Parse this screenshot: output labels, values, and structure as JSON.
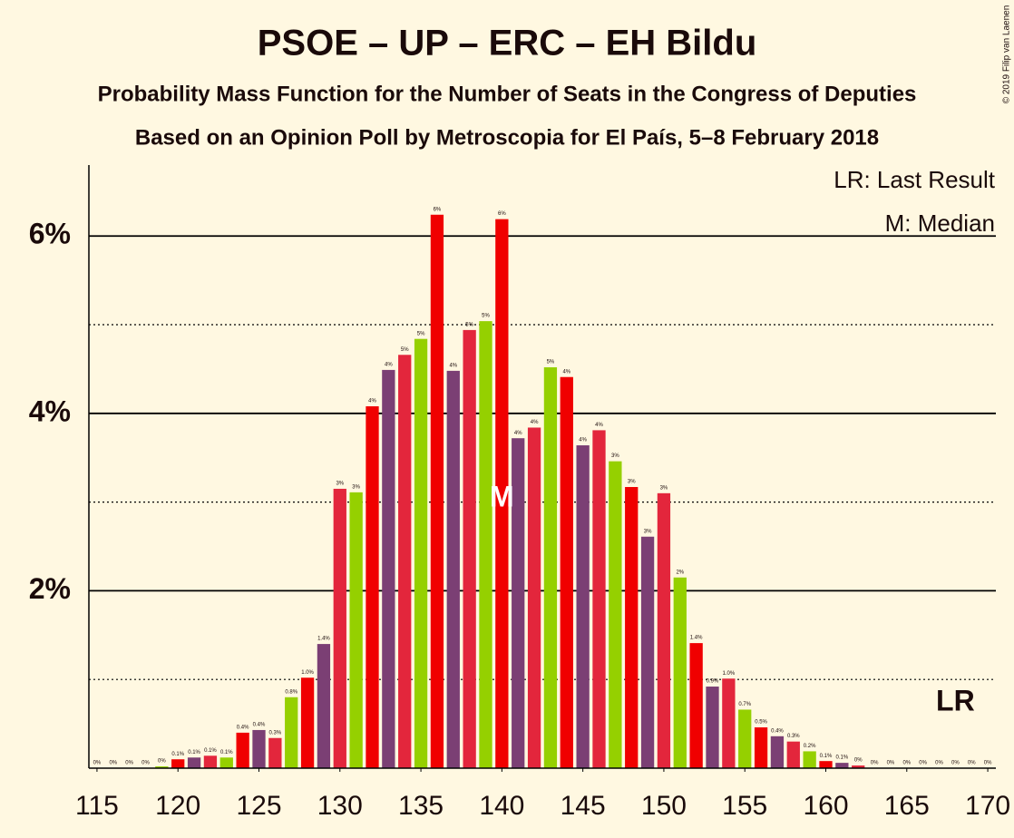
{
  "chart_data": {
    "type": "bar",
    "title": "PSOE – UP – ERC – EH Bildu",
    "subtitle": "Probability Mass Function for the Number of Seats in the Congress of Deputies",
    "subtitle2": "Based on an Opinion Poll by Metroscopia for El País, 5–8 February 2018",
    "credit": "© 2019 Filip van Laenen",
    "legend": [
      "LR: Last Result",
      "M: Median"
    ],
    "median": {
      "x": 140,
      "label": "M"
    },
    "last_result": {
      "x": 168,
      "label": "LR"
    },
    "x": [
      115,
      116,
      117,
      118,
      119,
      120,
      121,
      122,
      123,
      124,
      125,
      126,
      127,
      128,
      129,
      130,
      131,
      132,
      133,
      134,
      135,
      136,
      137,
      138,
      139,
      140,
      141,
      142,
      143,
      144,
      145,
      146,
      147,
      148,
      149,
      150,
      151,
      152,
      153,
      154,
      155,
      156,
      157,
      158,
      159,
      160,
      161,
      162,
      163,
      164,
      165,
      166,
      167,
      168,
      169,
      170
    ],
    "values": [
      0,
      0,
      0,
      0,
      0.02,
      0.1,
      0.12,
      0.14,
      0.12,
      0.4,
      0.43,
      0.34,
      0.8,
      1.02,
      1.4,
      3.15,
      3.11,
      4.08,
      4.49,
      4.66,
      4.84,
      6.24,
      4.48,
      4.94,
      5.04,
      6.19,
      3.72,
      3.84,
      4.52,
      4.41,
      3.64,
      3.81,
      3.46,
      3.17,
      2.61,
      3.1,
      2.15,
      1.41,
      0.92,
      1.01,
      0.66,
      0.46,
      0.36,
      0.3,
      0.19,
      0.08,
      0.06,
      0.03,
      0,
      0,
      0,
      0,
      0,
      0,
      0,
      0
    ],
    "value_labels": [
      "0%",
      "0%",
      "0%",
      "0%",
      "0%",
      "0.1%",
      "0.1%",
      "0.1%",
      "0.1%",
      "0.4%",
      "0.4%",
      "0.3%",
      "0.8%",
      "1.0%",
      "1.4%",
      "3%",
      "3%",
      "4%",
      "4%",
      "5%",
      "5%",
      "6%",
      "4%",
      "5%",
      "5%",
      "6%",
      "4%",
      "4%",
      "5%",
      "4%",
      "4%",
      "4%",
      "3%",
      "3%",
      "3%",
      "3%",
      "2%",
      "1.4%",
      "0.9%",
      "1.0%",
      "0.7%",
      "0.5%",
      "0.4%",
      "0.3%",
      "0.2%",
      "0.1%",
      "0.1%",
      "0%",
      "0%",
      "0%",
      "0%",
      "0%",
      "0%",
      "0%",
      "0%",
      "0%"
    ],
    "colors": [
      "#95d000",
      "#f00000",
      "#7b3f74",
      "#e3263c"
    ],
    "xlim": [
      114.5,
      170.5
    ],
    "xticks": [
      115,
      120,
      125,
      130,
      135,
      140,
      145,
      150,
      155,
      160,
      165,
      170
    ],
    "ylim": [
      0,
      6.8
    ],
    "yticks": [
      {
        "value": 2,
        "label": "2%"
      },
      {
        "value": 4,
        "label": "4%"
      },
      {
        "value": 6,
        "label": "6%"
      }
    ],
    "minor_yticks": [
      1,
      3,
      5
    ],
    "grid": true
  }
}
